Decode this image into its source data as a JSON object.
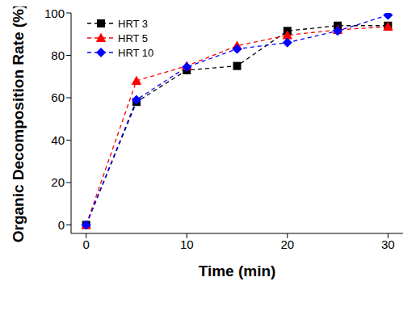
{
  "chart_data": {
    "type": "line",
    "x_label": "Time (min)",
    "y_label": "Organic Decomposition Rate (%)",
    "x": [
      0,
      5,
      10,
      15,
      20,
      25,
      30
    ],
    "xlim": [
      -1.5,
      31.5
    ],
    "xticks": [
      0,
      10,
      20,
      30
    ],
    "ylim": [
      -4,
      100
    ],
    "yticks": [
      0,
      20,
      40,
      60,
      80,
      100
    ],
    "legend": "top-left",
    "grid": false,
    "series": [
      {
        "name": "HRT 3",
        "color": "#000000",
        "marker": "square",
        "line_style": "dashed",
        "values": [
          0,
          58,
          73,
          75,
          91.5,
          94,
          94
        ]
      },
      {
        "name": "HRT 5",
        "color": "#ff0000",
        "marker": "triangle",
        "line_style": "dashed",
        "values": [
          0,
          68,
          75,
          84.5,
          89.5,
          92,
          93.5
        ]
      },
      {
        "name": "HRT 10",
        "color": "#0000ff",
        "marker": "diamond",
        "line_style": "dashed",
        "values": [
          0,
          59,
          74.5,
          83,
          86,
          91.5,
          99
        ]
      }
    ]
  }
}
